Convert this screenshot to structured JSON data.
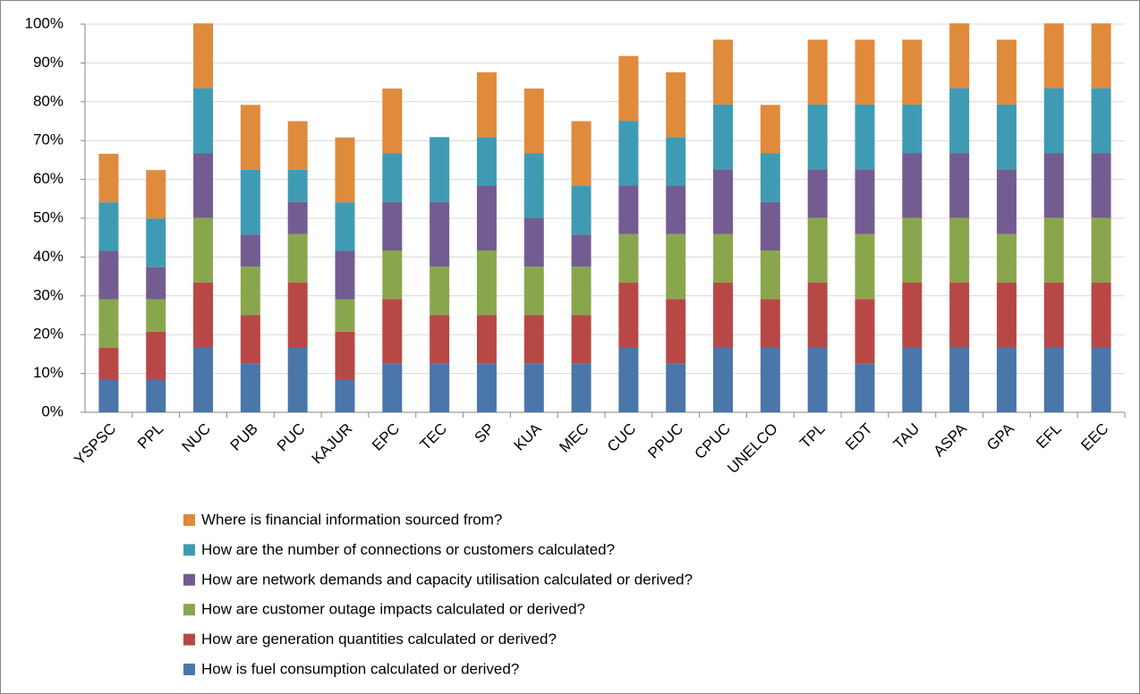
{
  "chart_data": {
    "type": "stacked_bar",
    "categories": [
      "YSPSC",
      "PPL",
      "NUC",
      "PUB",
      "PUC",
      "KAJUR",
      "EPC",
      "TEC",
      "SP",
      "KUA",
      "MEC",
      "CUC",
      "PPUC",
      "CPUC",
      "UNELCO",
      "TPL",
      "EDT",
      "TAU",
      "ASPA",
      "GPA",
      "EFL",
      "EEC"
    ],
    "series": [
      {
        "name": "How is fuel consumption calculated or derived?",
        "color": "#4a76aa",
        "values": [
          8.3,
          8.3,
          16.7,
          12.5,
          16.7,
          8.3,
          12.5,
          12.5,
          12.5,
          12.5,
          12.5,
          16.7,
          12.5,
          16.7,
          16.7,
          16.7,
          12.5,
          16.7,
          16.7,
          16.7,
          16.7,
          16.7
        ]
      },
      {
        "name": "How are generation quantities calculated or derived?",
        "color": "#b84845",
        "values": [
          8.3,
          12.5,
          16.7,
          12.5,
          16.7,
          12.5,
          16.7,
          12.5,
          12.5,
          12.5,
          12.5,
          16.7,
          16.7,
          16.7,
          12.5,
          16.7,
          16.7,
          16.7,
          16.7,
          16.7,
          16.7,
          16.7
        ]
      },
      {
        "name": "How are customer outage impacts calculated or derived?",
        "color": "#8aa64d",
        "values": [
          12.5,
          8.3,
          16.7,
          12.5,
          12.5,
          8.3,
          12.5,
          12.5,
          16.7,
          12.5,
          12.5,
          12.5,
          16.7,
          12.5,
          12.5,
          16.7,
          16.7,
          16.7,
          16.7,
          12.5,
          16.7,
          16.7
        ]
      },
      {
        "name": "How are network demands and capacity utilisation calculated or derived?",
        "color": "#735c91",
        "values": [
          12.5,
          8.3,
          16.7,
          8.3,
          8.3,
          12.5,
          12.5,
          16.7,
          16.7,
          12.5,
          8.3,
          12.5,
          12.5,
          16.7,
          12.5,
          12.5,
          16.7,
          16.7,
          16.7,
          16.7,
          16.7,
          16.7
        ]
      },
      {
        "name": "How are the number of connections or customers calculated?",
        "color": "#3f9bb3",
        "values": [
          12.5,
          12.5,
          16.7,
          16.7,
          8.3,
          12.5,
          12.5,
          16.7,
          12.5,
          16.7,
          12.5,
          16.7,
          12.5,
          16.7,
          12.5,
          16.7,
          16.7,
          12.5,
          16.7,
          16.7,
          16.7,
          16.7
        ]
      },
      {
        "name": "Where is financial information sourced from?",
        "color": "#e08a3c",
        "values": [
          12.5,
          12.5,
          16.7,
          16.7,
          12.5,
          16.7,
          16.7,
          0,
          16.7,
          16.7,
          16.7,
          16.7,
          16.7,
          16.7,
          12.5,
          16.7,
          16.7,
          16.7,
          16.7,
          16.7,
          16.7,
          16.7
        ]
      }
    ],
    "ylim": [
      0,
      100
    ],
    "yticks": [
      {
        "value": 0,
        "label": "0%"
      },
      {
        "value": 10,
        "label": "10%"
      },
      {
        "value": 20,
        "label": "20%"
      },
      {
        "value": 30,
        "label": "30%"
      },
      {
        "value": 40,
        "label": "40%"
      },
      {
        "value": 50,
        "label": "50%"
      },
      {
        "value": 60,
        "label": "60%"
      },
      {
        "value": 70,
        "label": "70%"
      },
      {
        "value": 80,
        "label": "80%"
      },
      {
        "value": 90,
        "label": "90%"
      },
      {
        "value": 100,
        "label": "100%"
      }
    ],
    "grid": true,
    "legend": "bottom"
  }
}
